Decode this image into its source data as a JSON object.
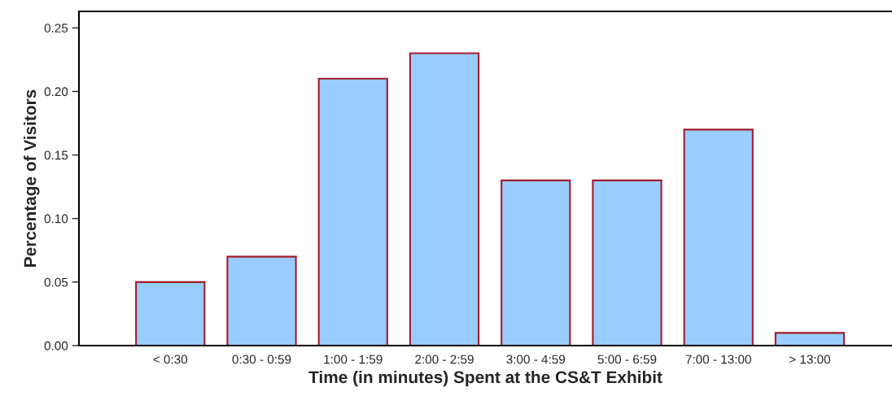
{
  "chart_data": {
    "type": "bar",
    "xlabel": "Time (in minutes) Spent at the CS&T Exhibit",
    "ylabel": "Percentage of Visitors",
    "categories": [
      "< 0:30",
      "0:30 - 0:59",
      "1:00 - 1:59",
      "2:00 - 2:59",
      "3:00 - 4:59",
      "5:00 - 6:59",
      "7:00 - 13:00",
      "> 13:00"
    ],
    "series": [
      {
        "color": "#99ccff",
        "values": [
          0.05,
          0.07,
          0.21,
          0.23,
          0.13,
          0.13,
          0.17,
          0.01
        ]
      }
    ],
    "ylim": [
      0,
      0.263
    ],
    "yticks": [
      {
        "value": 0,
        "label": "0.00"
      },
      {
        "value": 0.05,
        "label": "0.05"
      },
      {
        "value": 0.1,
        "label": "0.10"
      },
      {
        "value": 0.15,
        "label": "0.15"
      },
      {
        "value": 0.2,
        "label": "0.20"
      },
      {
        "value": 0.25,
        "label": "0.25"
      }
    ],
    "grid": false
  }
}
